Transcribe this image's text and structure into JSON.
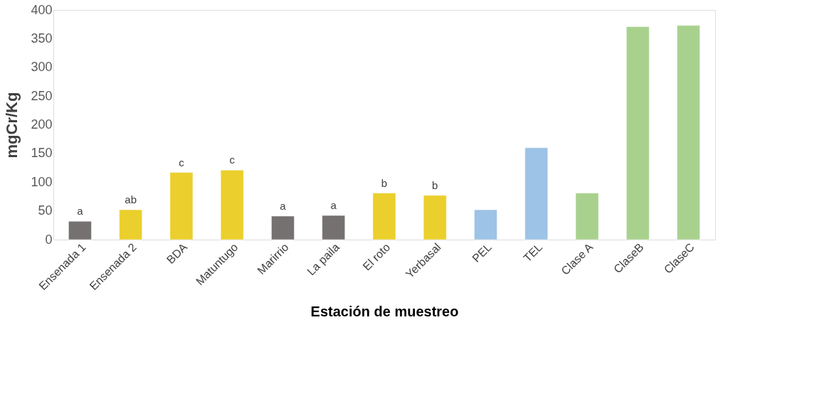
{
  "chart_data": {
    "type": "bar",
    "xlabel": "Estación de muestreo",
    "ylabel": "mgCr/Kg",
    "categories": [
      "Ensenada 1",
      "Ensenada 2",
      "BDA",
      "Matuntugo",
      "Marirrio",
      "La paila",
      "El roto",
      "Yerbasal",
      "PEL",
      "TEL",
      "Clase A",
      "ClaseB",
      "ClaseC"
    ],
    "values": [
      32,
      52,
      117,
      121,
      41,
      42,
      81,
      77,
      52,
      160,
      81,
      371,
      373
    ],
    "colors": [
      "#767171",
      "#ebcf2c",
      "#ebcf2c",
      "#ebcf2c",
      "#767171",
      "#767171",
      "#ebcf2c",
      "#ebcf2c",
      "#9dc3e6",
      "#9dc3e6",
      "#a9d18e",
      "#a9d18e",
      "#a9d18e"
    ],
    "ylim": [
      0,
      400
    ],
    "yticks": [
      0,
      50,
      100,
      150,
      200,
      250,
      300,
      350,
      400
    ],
    "grid": false,
    "annotations": [
      {
        "text": "a",
        "x": "Ensenada 1",
        "y": 32
      },
      {
        "text": "ab",
        "x": "Ensenada 2",
        "y": 52
      },
      {
        "text": "c",
        "x": "BDA",
        "y": 117
      },
      {
        "text": "c",
        "x": "Matuntugo",
        "y": 121
      },
      {
        "text": "a",
        "x": "Marirrio",
        "y": 41
      },
      {
        "text": "a",
        "x": "La paila",
        "y": 42
      },
      {
        "text": "b",
        "x": "El roto",
        "y": 81
      },
      {
        "text": "b",
        "x": "Yerbasal",
        "y": 77
      }
    ]
  }
}
